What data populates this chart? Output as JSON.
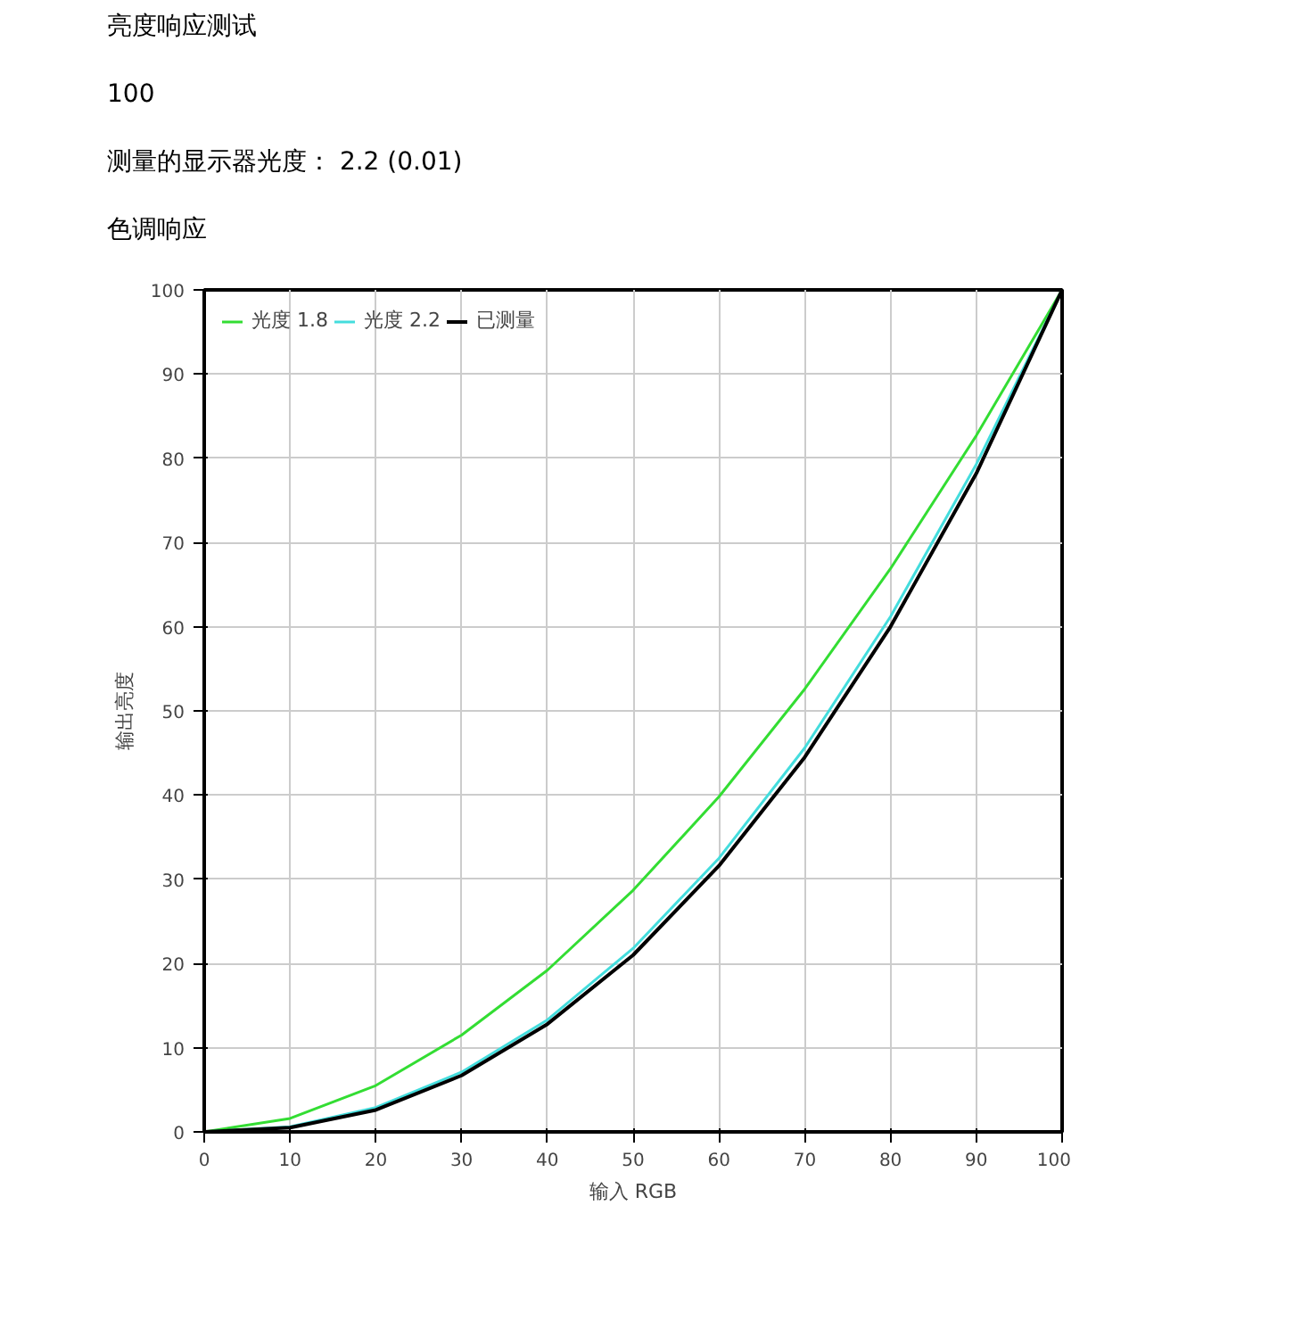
{
  "chart_data": {
    "type": "line",
    "title": "亮度响应测试",
    "subtitle": "色调响应",
    "annotations": [
      "100",
      "测量的显示器光度： 2.2 (0.01)"
    ],
    "xlabel": "输入 RGB",
    "ylabel": "输出亮度",
    "x": [
      0,
      10,
      20,
      30,
      40,
      50,
      60,
      70,
      80,
      90,
      100
    ],
    "series": [
      {
        "name": "光度 1.8",
        "color": "#33dd33",
        "values": [
          0,
          1.6,
          5.5,
          11.5,
          19.2,
          28.7,
          39.8,
          52.6,
          66.9,
          82.7,
          100
        ]
      },
      {
        "name": "光度 2.2",
        "color": "#44dddd",
        "values": [
          0,
          0.6,
          2.9,
          7.1,
          13.3,
          21.8,
          32.5,
          45.6,
          61.2,
          79.3,
          100
        ]
      },
      {
        "name": "已测量",
        "color": "#000000",
        "values": [
          0,
          0.5,
          2.6,
          6.7,
          12.8,
          21.0,
          31.6,
          44.5,
          60.0,
          78.2,
          100
        ]
      }
    ],
    "xlim": [
      0,
      100
    ],
    "ylim": [
      0,
      100
    ],
    "xticks": [
      0,
      10,
      20,
      30,
      40,
      50,
      60,
      70,
      80,
      90,
      100
    ],
    "yticks": [
      0,
      10,
      20,
      30,
      40,
      50,
      60,
      70,
      80,
      90,
      100
    ],
    "grid": true,
    "legend": "top left",
    "marker": "none",
    "line_style": "solid"
  }
}
